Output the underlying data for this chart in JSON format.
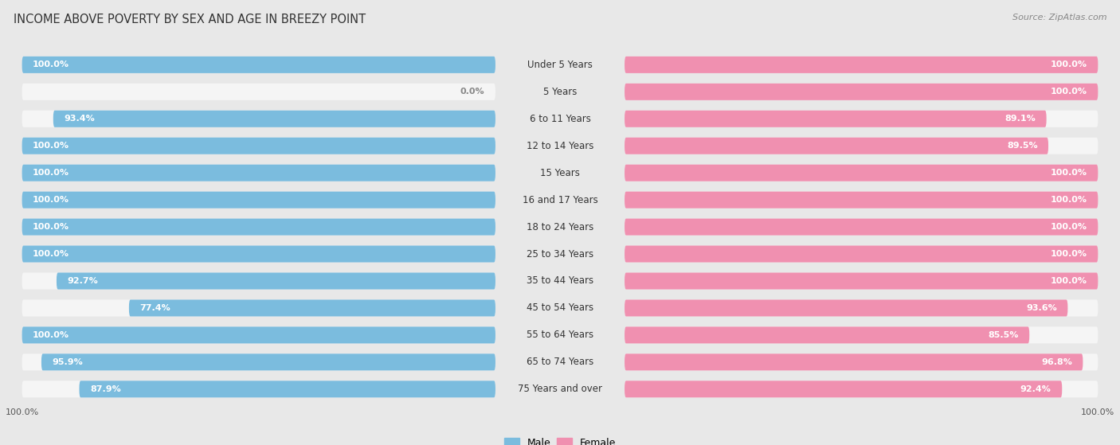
{
  "title": "INCOME ABOVE POVERTY BY SEX AND AGE IN BREEZY POINT",
  "source": "Source: ZipAtlas.com",
  "categories": [
    "Under 5 Years",
    "5 Years",
    "6 to 11 Years",
    "12 to 14 Years",
    "15 Years",
    "16 and 17 Years",
    "18 to 24 Years",
    "25 to 34 Years",
    "35 to 44 Years",
    "45 to 54 Years",
    "55 to 64 Years",
    "65 to 74 Years",
    "75 Years and over"
  ],
  "male": [
    100.0,
    0.0,
    93.4,
    100.0,
    100.0,
    100.0,
    100.0,
    100.0,
    92.7,
    77.4,
    100.0,
    95.9,
    87.9
  ],
  "female": [
    100.0,
    100.0,
    89.1,
    89.5,
    100.0,
    100.0,
    100.0,
    100.0,
    100.0,
    93.6,
    85.5,
    96.8,
    92.4
  ],
  "male_color": "#7bbcde",
  "female_color": "#f090b0",
  "male_label": "Male",
  "female_label": "Female",
  "bg_color": "#e8e8e8",
  "bar_bg_color": "#f5f5f5",
  "bar_bg_border": "#dddddd",
  "title_fontsize": 10.5,
  "label_fontsize": 8.5,
  "value_fontsize": 8,
  "max_val": 100.0
}
